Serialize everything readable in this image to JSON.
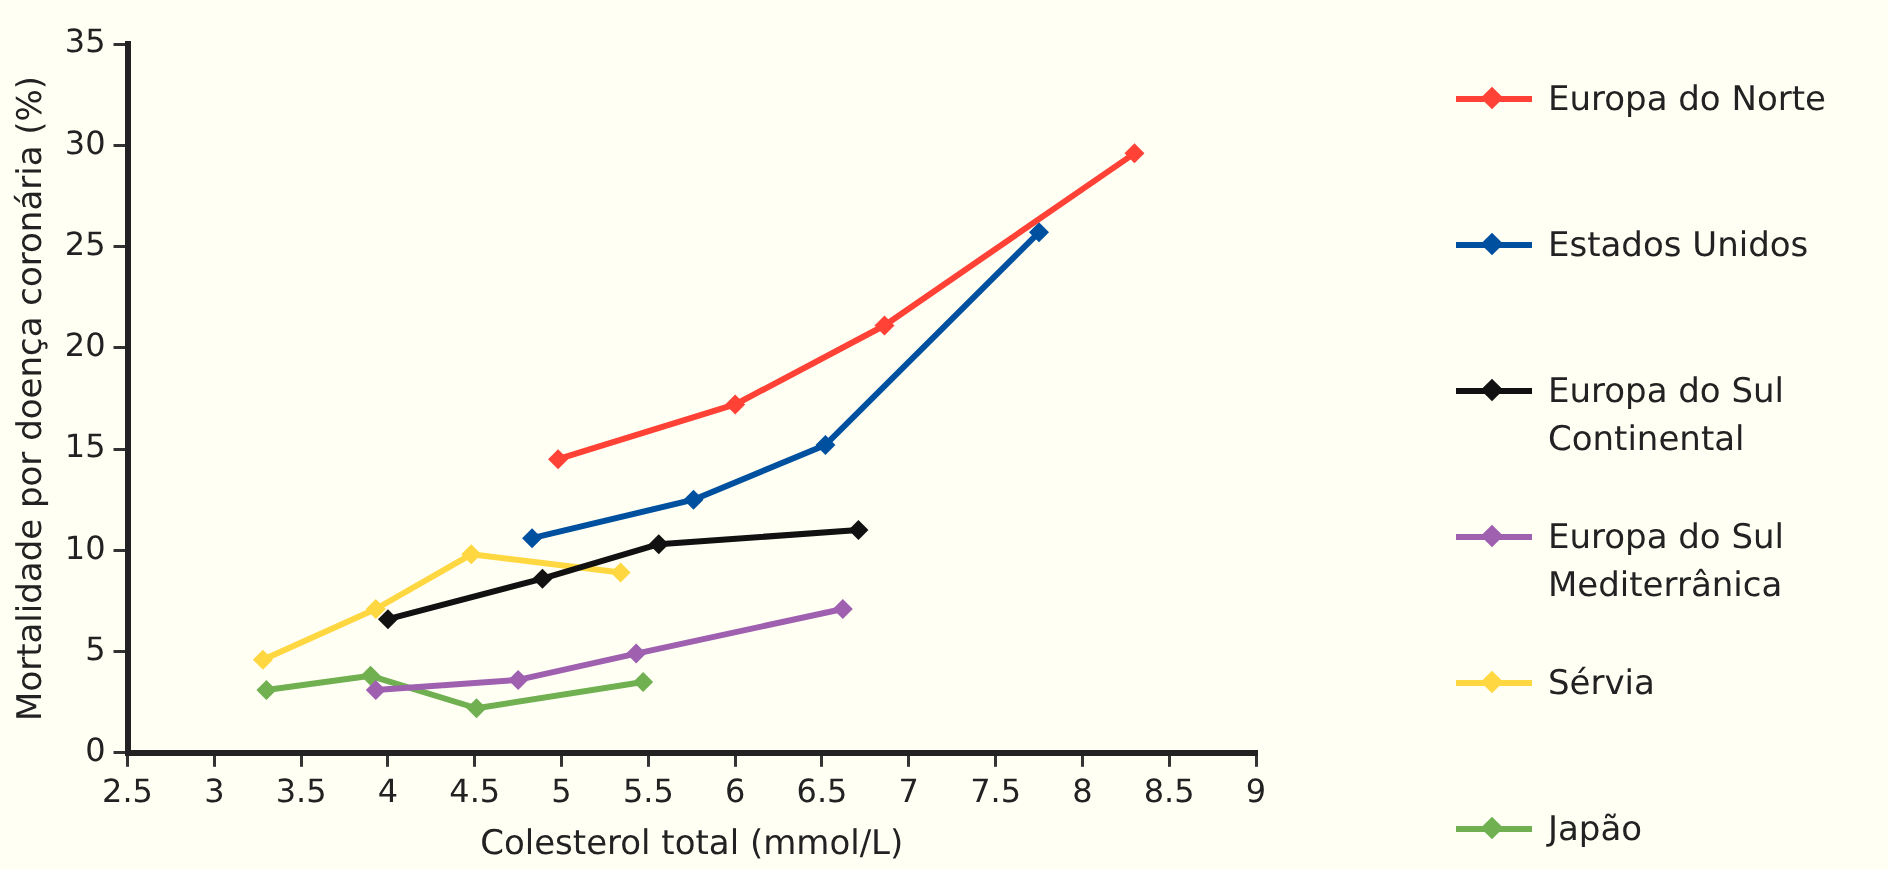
{
  "chart_data": {
    "type": "line",
    "xlabel": "Colesterol total (mmol/L)",
    "ylabel": "Mortalidade por doença coronária (%)",
    "xlim": [
      2.5,
      9
    ],
    "xticks": [
      2.5,
      3,
      3.5,
      4,
      4.5,
      5,
      5.5,
      6,
      6.5,
      7,
      7.5,
      8,
      8.5,
      9
    ],
    "ylim": [
      0,
      35
    ],
    "yticks": [
      0,
      5,
      10,
      15,
      20,
      25,
      30,
      35
    ],
    "grid": false,
    "legend": "right",
    "marker": "diamond",
    "line_style": "solid",
    "series": [
      {
        "name": "Europa do Norte",
        "color": "#ff4136",
        "x": [
          4.98,
          6.0,
          6.86,
          8.3
        ],
        "values": [
          14.5,
          17.2,
          21.1,
          29.6
        ]
      },
      {
        "name": "Estados Unidos",
        "color": "#0050a0",
        "x": [
          4.83,
          5.76,
          6.52,
          7.75
        ],
        "values": [
          10.6,
          12.5,
          15.2,
          25.7
        ]
      },
      {
        "name": "Europa do Sul Continental",
        "color": "#111111",
        "x": [
          4.0,
          4.89,
          5.56,
          6.71
        ],
        "values": [
          6.6,
          8.6,
          10.3,
          11.0
        ]
      },
      {
        "name": "Europa do Sul Mediterrânica",
        "color": "#a060b0",
        "x": [
          3.93,
          4.75,
          5.43,
          6.62
        ],
        "values": [
          3.1,
          3.6,
          4.9,
          7.1
        ]
      },
      {
        "name": "Sérvia",
        "color": "#ffd740",
        "x": [
          3.28,
          3.93,
          4.48,
          5.34
        ],
        "values": [
          4.6,
          7.1,
          9.8,
          8.9
        ]
      },
      {
        "name": "Japão",
        "color": "#70b050",
        "x": [
          3.3,
          3.9,
          4.51,
          5.47
        ],
        "values": [
          3.1,
          3.8,
          2.2,
          3.5
        ]
      }
    ]
  }
}
